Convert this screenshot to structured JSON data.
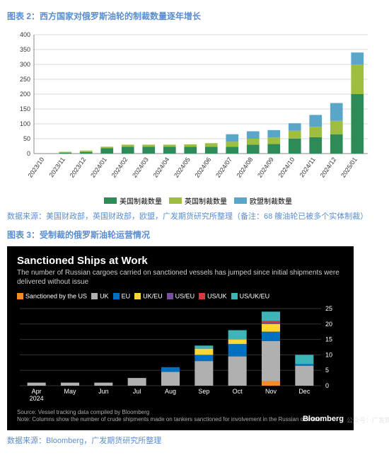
{
  "chart1": {
    "title": "图表 2：西方国家对俄罗斯油轮的制裁数量逐年增长",
    "type": "stacked-bar",
    "categories": [
      "2023/10",
      "2023/11",
      "2023/12",
      "2024/01",
      "2024/02",
      "2024/03",
      "2024/04",
      "2024/05",
      "2024/06",
      "2024/07",
      "2024/08",
      "2024/09",
      "2024/10",
      "2024/11",
      "2024/12",
      "2025/01"
    ],
    "series": [
      {
        "name": "美国制裁数量",
        "color": "#2e8a56",
        "values": [
          0,
          3,
          5,
          18,
          23,
          23,
          23,
          23,
          23,
          23,
          30,
          32,
          50,
          55,
          65,
          200
        ]
      },
      {
        "name": "英国制裁数量",
        "color": "#9dbe3f",
        "values": [
          0,
          3,
          5,
          5,
          7,
          7,
          7,
          8,
          12,
          17,
          20,
          22,
          27,
          35,
          45,
          100
        ]
      },
      {
        "name": "欧盟制裁数量",
        "color": "#5aa6c9",
        "values": [
          0,
          0,
          0,
          0,
          0,
          0,
          0,
          0,
          0,
          25,
          25,
          25,
          25,
          40,
          60,
          40
        ]
      }
    ],
    "ylim": [
      0,
      400
    ],
    "ytick_step": 50,
    "background_color": "#ffffff",
    "grid_color": "#d9d9d9",
    "axis_color": "#888888",
    "label_fontsize": 9,
    "source": "数据来源：美国财政部，英国财政部，欧盟，广发期货研究所整理（备注：68 艘油轮已被多个实体制裁）"
  },
  "chart2": {
    "title_label": "图表 3：受制裁的俄罗斯油轮运营情况",
    "type": "stacked-bar",
    "headline": "Sanctioned Ships at Work",
    "subtitle": "The number of Russian cargoes carried on sanctioned vessels has jumped since initial shipments were delivered without issue",
    "categories": [
      "Apr 2024",
      "May",
      "Jun",
      "Jul",
      "Aug",
      "Sep",
      "Oct",
      "Nov",
      "Dec"
    ],
    "series": [
      {
        "name": "Sanctioned by the US",
        "color": "#f28c28",
        "values": [
          0,
          0,
          0,
          0,
          0,
          0,
          0,
          1.5,
          0
        ]
      },
      {
        "name": "UK",
        "color": "#b0b0b0",
        "values": [
          1,
          1,
          1,
          2.5,
          4.5,
          8,
          9.5,
          13,
          6.5
        ]
      },
      {
        "name": "EU",
        "color": "#0070c0",
        "values": [
          0,
          0,
          0,
          0,
          1.5,
          2,
          4,
          3,
          0.5
        ]
      },
      {
        "name": "UK/EU",
        "color": "#ffd633",
        "values": [
          0,
          0,
          0,
          0,
          0,
          2,
          1.5,
          2.5,
          0
        ]
      },
      {
        "name": "US/EU",
        "color": "#7a4ea0",
        "values": [
          0,
          0,
          0,
          0,
          0,
          0,
          0,
          0.5,
          0
        ]
      },
      {
        "name": "US/UK",
        "color": "#d63a3a",
        "values": [
          0,
          0,
          0,
          0,
          0,
          0,
          0,
          0.5,
          0
        ]
      },
      {
        "name": "US/UK/EU",
        "color": "#3cb4b8",
        "values": [
          0,
          0,
          0,
          0,
          0,
          1,
          3,
          3,
          3
        ]
      }
    ],
    "ylim": [
      0,
      25
    ],
    "ytick_step": 5,
    "background_color": "#000000",
    "grid_color": "#333333",
    "text_color": "#ffffff",
    "footer1": "Source: Vessel tracking data compiled by Bloomberg",
    "footer2": "Note: Columns show the number of crude shipments made on tankers sanctioned for involvement in the Russian oil trade.",
    "logo": "Bloomberg",
    "source": "数据来源：Bloomberg，广发期货研究所整理"
  },
  "watermark": "公众号：广发期货研究"
}
